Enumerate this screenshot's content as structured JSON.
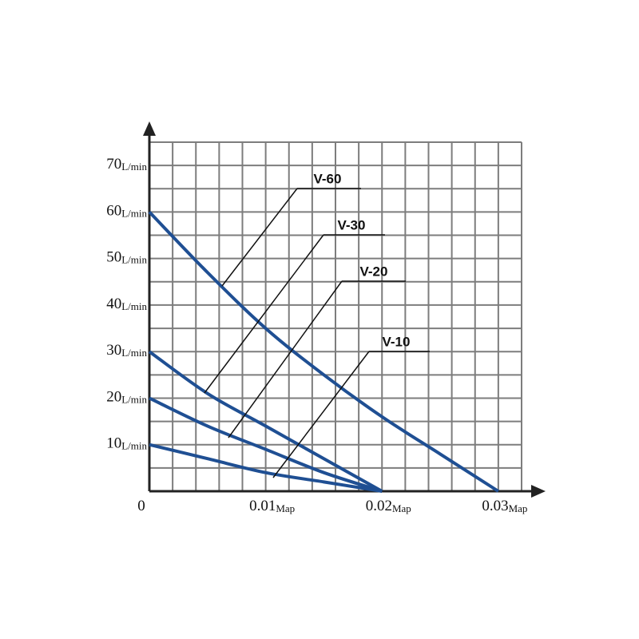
{
  "chart_data": {
    "type": "line",
    "xlim": [
      0,
      0.032
    ],
    "ylim": [
      0,
      75
    ],
    "xticks": [
      0,
      {
        "value": 0.01,
        "label": "0.01Map"
      },
      {
        "value": 0.02,
        "label": "0.02Map"
      },
      {
        "value": 0.03,
        "label": "0.03Map"
      }
    ],
    "yticks": [
      {
        "value": 10,
        "label": "10L/min"
      },
      {
        "value": 20,
        "label": "20L/min"
      },
      {
        "value": 30,
        "label": "30L/min"
      },
      {
        "value": 40,
        "label": "40L/min"
      },
      {
        "value": 50,
        "label": "50L/min"
      },
      {
        "value": 60,
        "label": "60L/min"
      },
      {
        "value": 70,
        "label": "70L/min"
      }
    ],
    "grid": true,
    "series": [
      {
        "name": "V-60",
        "color": "#1f4f93",
        "x": [
          0,
          0.005,
          0.01,
          0.015,
          0.02,
          0.025,
          0.03
        ],
        "values": [
          60,
          47,
          35,
          25,
          16,
          8,
          0
        ]
      },
      {
        "name": "V-30",
        "color": "#1f4f93",
        "x": [
          0,
          0.005,
          0.01,
          0.015,
          0.02
        ],
        "values": [
          30,
          21,
          14,
          7,
          0
        ]
      },
      {
        "name": "V-20",
        "color": "#1f4f93",
        "x": [
          0,
          0.005,
          0.01,
          0.015,
          0.02
        ],
        "values": [
          20,
          14,
          9,
          4,
          0
        ]
      },
      {
        "name": "V-10",
        "color": "#1f4f93",
        "x": [
          0,
          0.005,
          0.01,
          0.015,
          0.02
        ],
        "values": [
          10,
          7,
          4,
          2,
          0
        ]
      }
    ]
  }
}
